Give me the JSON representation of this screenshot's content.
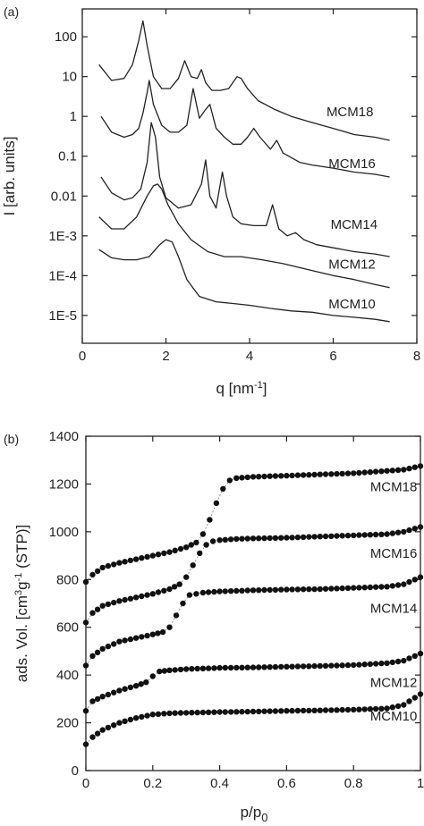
{
  "chart_data": [
    {
      "type": "line",
      "panel_label": "(a)",
      "xlabel": "q [nm",
      "xlabel_sup": "-1",
      "xlabel_end": "]",
      "ylabel": "I [arb. units]",
      "xlim": [
        0,
        8
      ],
      "ylim": [
        2e-06,
        500
      ],
      "yscale": "log",
      "xticks": [
        "0",
        "2",
        "4",
        "6",
        "8"
      ],
      "yticks": [
        {
          "value": 100,
          "label": "100"
        },
        {
          "value": 10,
          "label": "10"
        },
        {
          "value": 1,
          "label": "1"
        },
        {
          "value": 0.1,
          "label": "0.1"
        },
        {
          "value": 0.01,
          "label": "0.01"
        },
        {
          "value": 0.001,
          "label": "1E-3"
        },
        {
          "value": 0.0001,
          "label": "1E-4"
        },
        {
          "value": 1e-05,
          "label": "1E-5"
        }
      ],
      "series": [
        {
          "name": "MCM18",
          "label_at": [
            6.4,
            1.0
          ],
          "x": [
            0.4,
            0.7,
            1.0,
            1.2,
            1.35,
            1.45,
            1.55,
            1.7,
            1.9,
            2.1,
            2.3,
            2.45,
            2.6,
            2.75,
            2.85,
            2.95,
            3.1,
            3.3,
            3.5,
            3.7,
            3.8,
            3.95,
            4.2,
            4.6,
            5.0,
            5.5,
            6.0,
            6.5,
            7.0,
            7.35
          ],
          "y": [
            20,
            8,
            9,
            20,
            80,
            250,
            60,
            10,
            5,
            5,
            9,
            25,
            10,
            9,
            15,
            7,
            4.5,
            4.5,
            5,
            10,
            9,
            5,
            2.5,
            1.5,
            1.0,
            0.7,
            0.5,
            0.35,
            0.3,
            0.25
          ]
        },
        {
          "name": "MCM16",
          "label_at": [
            6.45,
            0.05
          ],
          "x": [
            0.45,
            0.7,
            1.0,
            1.2,
            1.35,
            1.45,
            1.55,
            1.6,
            1.7,
            1.9,
            2.1,
            2.3,
            2.5,
            2.65,
            2.8,
            2.95,
            3.05,
            3.2,
            3.4,
            3.6,
            3.8,
            3.95,
            4.1,
            4.25,
            4.5,
            4.65,
            4.8,
            5.2,
            5.5,
            6.0,
            6.5,
            7.0,
            7.35
          ],
          "y": [
            1.0,
            0.4,
            0.3,
            0.35,
            0.5,
            1.2,
            4,
            8,
            2,
            0.6,
            0.4,
            0.4,
            0.6,
            5,
            0.9,
            1.5,
            2,
            0.5,
            0.3,
            0.2,
            0.2,
            0.3,
            0.5,
            0.3,
            0.15,
            0.25,
            0.12,
            0.07,
            0.06,
            0.05,
            0.04,
            0.035,
            0.03
          ]
        },
        {
          "name": "MCM14",
          "label_at": [
            6.5,
            0.0015
          ],
          "x": [
            0.45,
            0.7,
            1.0,
            1.2,
            1.4,
            1.55,
            1.65,
            1.75,
            1.85,
            2.0,
            2.3,
            2.6,
            2.85,
            2.95,
            3.05,
            3.2,
            3.35,
            3.45,
            3.6,
            3.8,
            4.1,
            4.4,
            4.55,
            4.7,
            4.9,
            5.1,
            5.3,
            5.6,
            6.0,
            6.5,
            7.0,
            7.35
          ],
          "y": [
            0.03,
            0.012,
            0.008,
            0.009,
            0.015,
            0.07,
            0.7,
            0.3,
            0.03,
            0.009,
            0.005,
            0.006,
            0.02,
            0.08,
            0.01,
            0.005,
            0.04,
            0.01,
            0.003,
            0.002,
            0.0018,
            0.0018,
            0.006,
            0.0015,
            0.001,
            0.0012,
            0.0008,
            0.0006,
            0.0005,
            0.0004,
            0.00035,
            0.0003
          ]
        },
        {
          "name": "MCM12",
          "label_at": [
            6.45,
            0.00015
          ],
          "x": [
            0.4,
            0.7,
            1.0,
            1.3,
            1.55,
            1.7,
            1.8,
            1.9,
            2.05,
            2.3,
            2.6,
            3.0,
            3.4,
            3.8,
            4.3,
            4.8,
            5.3,
            6.0,
            6.5,
            7.0,
            7.35
          ],
          "y": [
            0.003,
            0.0015,
            0.0015,
            0.003,
            0.01,
            0.018,
            0.02,
            0.015,
            0.006,
            0.002,
            0.0008,
            0.0004,
            0.0003,
            0.0003,
            0.00025,
            0.0002,
            0.00015,
            0.0001,
            8e-05,
            6e-05,
            5e-05
          ]
        },
        {
          "name": "MCM10",
          "label_at": [
            6.45,
            1.5e-05
          ],
          "x": [
            0.4,
            0.7,
            1.0,
            1.3,
            1.6,
            1.85,
            2.0,
            2.15,
            2.3,
            2.5,
            2.8,
            3.2,
            3.6,
            4.0,
            4.5,
            5.0,
            5.5,
            6.0,
            6.5,
            7.0,
            7.35
          ],
          "y": [
            0.00045,
            0.00028,
            0.00025,
            0.00025,
            0.0003,
            0.0006,
            0.0008,
            0.0007,
            0.0003,
            8e-05,
            3e-05,
            2.2e-05,
            2e-05,
            1.8e-05,
            1.5e-05,
            1.3e-05,
            1.2e-05,
            1e-05,
            9e-06,
            8e-06,
            7e-06
          ]
        }
      ]
    },
    {
      "type": "line",
      "panel_label": "(b)",
      "xlabel": "p/p",
      "xlabel_sub": "0",
      "ylabel": "ads. Vol.  [cm",
      "ylabel_sup1": "3",
      "ylabel_mid": "g",
      "ylabel_sup2": "-1",
      "ylabel_end": " (STP)]",
      "xlim": [
        0,
        1
      ],
      "ylim": [
        0,
        1400
      ],
      "xticks": [
        "0",
        "0.2",
        "0.4",
        "0.6",
        "0.8",
        "1"
      ],
      "yticks": [
        "0",
        "200",
        "400",
        "600",
        "800",
        "1000",
        "1200",
        "1400"
      ],
      "series": [
        {
          "name": "MCM18",
          "label_at": [
            0.92,
            1170
          ],
          "x": [
            0,
            0.02,
            0.05,
            0.1,
            0.15,
            0.2,
            0.25,
            0.3,
            0.33,
            0.35,
            0.37,
            0.39,
            0.41,
            0.43,
            0.45,
            0.5,
            0.6,
            0.7,
            0.8,
            0.9,
            0.95,
            1.0
          ],
          "y": [
            790,
            820,
            850,
            870,
            885,
            900,
            915,
            935,
            955,
            990,
            1050,
            1120,
            1180,
            1215,
            1225,
            1230,
            1235,
            1240,
            1245,
            1255,
            1260,
            1275
          ]
        },
        {
          "name": "MCM16",
          "label_at": [
            0.92,
            890
          ],
          "x": [
            0,
            0.02,
            0.05,
            0.1,
            0.15,
            0.2,
            0.25,
            0.28,
            0.3,
            0.32,
            0.34,
            0.36,
            0.38,
            0.4,
            0.45,
            0.5,
            0.6,
            0.7,
            0.8,
            0.9,
            0.95,
            1.0
          ],
          "y": [
            620,
            660,
            690,
            710,
            725,
            740,
            760,
            780,
            810,
            860,
            910,
            945,
            960,
            965,
            970,
            972,
            975,
            980,
            985,
            990,
            1000,
            1020
          ]
        },
        {
          "name": "MCM14",
          "label_at": [
            0.92,
            660
          ],
          "x": [
            0,
            0.02,
            0.05,
            0.1,
            0.15,
            0.2,
            0.23,
            0.25,
            0.27,
            0.29,
            0.31,
            0.35,
            0.4,
            0.5,
            0.6,
            0.7,
            0.8,
            0.9,
            0.95,
            1.0
          ],
          "y": [
            440,
            480,
            510,
            540,
            555,
            570,
            580,
            600,
            650,
            700,
            735,
            745,
            750,
            755,
            758,
            760,
            765,
            770,
            780,
            810
          ]
        },
        {
          "name": "MCM12",
          "label_at": [
            0.92,
            350
          ],
          "x": [
            0,
            0.02,
            0.05,
            0.1,
            0.15,
            0.18,
            0.2,
            0.22,
            0.25,
            0.3,
            0.4,
            0.5,
            0.6,
            0.7,
            0.8,
            0.9,
            0.95,
            1.0
          ],
          "y": [
            250,
            290,
            310,
            335,
            355,
            370,
            395,
            415,
            420,
            425,
            430,
            432,
            435,
            438,
            442,
            450,
            460,
            490
          ]
        },
        {
          "name": "MCM10",
          "label_at": [
            0.92,
            210
          ],
          "x": [
            0,
            0.02,
            0.05,
            0.1,
            0.15,
            0.2,
            0.25,
            0.3,
            0.4,
            0.5,
            0.6,
            0.7,
            0.8,
            0.9,
            0.95,
            1.0
          ],
          "y": [
            110,
            140,
            170,
            200,
            220,
            235,
            240,
            242,
            245,
            247,
            250,
            252,
            255,
            260,
            275,
            320
          ]
        }
      ]
    }
  ]
}
